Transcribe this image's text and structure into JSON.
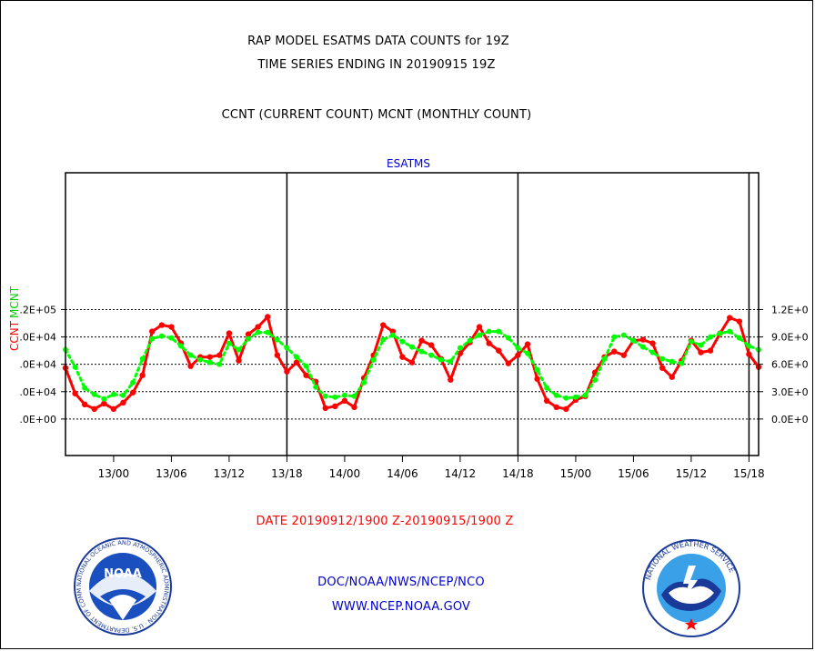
{
  "header": {
    "title_line1": "RAP MODEL ESATMS DATA COUNTS for 19Z",
    "title_line2": "TIME SERIES ENDING IN 20190915 19Z",
    "subtitle": "CCNT (CURRENT COUNT) MCNT (MONTHLY COUNT)"
  },
  "footer": {
    "date_range": "DATE 20190912/1900 Z-20190915/1900 Z",
    "org": "DOC/NOAA/NWS/NCEP/NCO",
    "url": "WWW.NCEP.NOAA.GOV"
  },
  "logos": {
    "noaa": {
      "label": "NOAA",
      "ring_text": "NATIONAL OCEANIC AND ATMOSPHERIC ADMINISTRATION · U.S. DEPARTMENT OF COMMERCE"
    },
    "nws": {
      "ring_text": "NATIONAL WEATHER SERVICE"
    }
  },
  "chart_data": {
    "type": "line",
    "title": "ESATMS",
    "ylabel_left_ccnt": "CCNT",
    "ylabel_left_mcnt": "MCNT",
    "ylim": [
      -40000,
      270000
    ],
    "xlim": [
      0,
      72
    ],
    "y_ticks": [
      {
        "value": 0,
        "left": ".0E+00",
        "right": "0.0E+0"
      },
      {
        "value": 30000,
        "left": ".0E+04",
        "right": "3.0E+0"
      },
      {
        "value": 60000,
        "left": ".0E+04",
        "right": "6.0E+0"
      },
      {
        "value": 90000,
        "left": ".0E+04",
        "right": "9.0E+0"
      },
      {
        "value": 120000,
        "left": ".2E+05",
        "right": "1.2E+0"
      }
    ],
    "x_ticks": [
      {
        "value": 5,
        "label": "13/00"
      },
      {
        "value": 11,
        "label": "13/06"
      },
      {
        "value": 17,
        "label": "13/12"
      },
      {
        "value": 23,
        "label": "13/18"
      },
      {
        "value": 29,
        "label": "14/00"
      },
      {
        "value": 35,
        "label": "14/06"
      },
      {
        "value": 41,
        "label": "14/12"
      },
      {
        "value": 47,
        "label": "14/18"
      },
      {
        "value": 53,
        "label": "15/00"
      },
      {
        "value": 59,
        "label": "15/06"
      },
      {
        "value": 65,
        "label": "15/12"
      },
      {
        "value": 71,
        "label": "15/18"
      }
    ],
    "vertical_lines": [
      23,
      47,
      71
    ],
    "grid": true,
    "series": [
      {
        "name": "CCNT",
        "color": "#ff0000",
        "style": "solid",
        "values": [
          56000,
          28000,
          16000,
          11000,
          17000,
          11000,
          18000,
          29000,
          48000,
          96000,
          103000,
          101000,
          83000,
          58000,
          68000,
          68000,
          70000,
          94000,
          64000,
          93000,
          101000,
          112000,
          70000,
          52000,
          62000,
          48000,
          41000,
          12000,
          14000,
          20000,
          13000,
          45000,
          70000,
          103000,
          96000,
          68000,
          62000,
          86000,
          81000,
          66000,
          43000,
          72000,
          84000,
          101000,
          83000,
          75000,
          61000,
          70000,
          82000,
          44000,
          20000,
          13000,
          11000,
          21000,
          25000,
          51000,
          68000,
          74000,
          70000,
          86000,
          87000,
          83000,
          56000,
          46000,
          64000,
          86000,
          73000,
          75000,
          94000,
          111000,
          107000,
          71000,
          57000
        ]
      },
      {
        "name": "MCNT",
        "color": "#00ff00",
        "style": "dotted",
        "values": [
          76000,
          57000,
          34000,
          27000,
          22000,
          27000,
          26000,
          40000,
          66000,
          88000,
          91000,
          89000,
          80000,
          70000,
          65000,
          62000,
          60000,
          83000,
          76000,
          88000,
          95000,
          95000,
          87000,
          78000,
          68000,
          58000,
          35000,
          25000,
          24000,
          26000,
          25000,
          40000,
          65000,
          87000,
          92000,
          85000,
          79000,
          74000,
          70000,
          65000,
          63000,
          78000,
          86000,
          92000,
          96000,
          96000,
          89000,
          78000,
          72000,
          54000,
          34000,
          26000,
          23000,
          24000,
          26000,
          43000,
          66000,
          90000,
          92000,
          86000,
          79000,
          73000,
          66000,
          63000,
          61000,
          85000,
          81000,
          90000,
          94000,
          96000,
          89000,
          80000,
          76000
        ]
      }
    ]
  }
}
